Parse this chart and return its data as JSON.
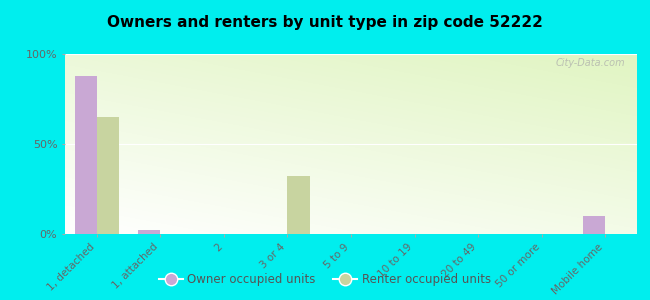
{
  "title": "Owners and renters by unit type in zip code 52222",
  "categories": [
    "1, detached",
    "1, attached",
    "2",
    "3 or 4",
    "5 to 9",
    "10 to 19",
    "20 to 49",
    "50 or more",
    "Mobile home"
  ],
  "owner_values": [
    88,
    2,
    0,
    0,
    0,
    0,
    0,
    0,
    10
  ],
  "renter_values": [
    65,
    0,
    0,
    32,
    0,
    0,
    0,
    0,
    0
  ],
  "owner_color": "#c9a8d4",
  "renter_color": "#c8d4a0",
  "background_color": "#00eeee",
  "ylim": [
    0,
    100
  ],
  "yticks": [
    0,
    50,
    100
  ],
  "ytick_labels": [
    "0%",
    "50%",
    "100%"
  ],
  "bar_width": 0.35,
  "legend_owner": "Owner occupied units",
  "legend_renter": "Renter occupied units",
  "watermark": "City-Data.com"
}
